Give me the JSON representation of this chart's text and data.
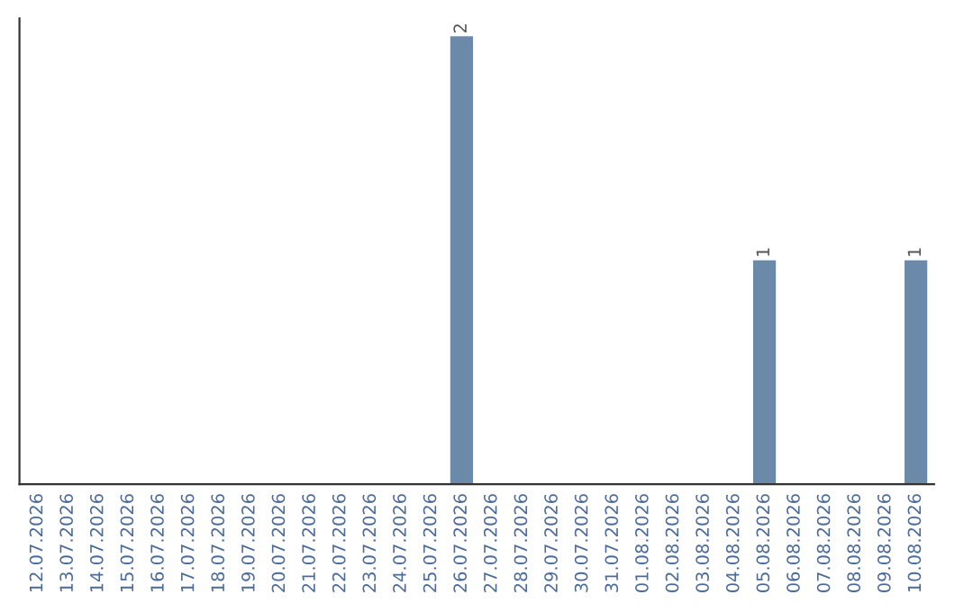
{
  "chart_data": {
    "type": "bar",
    "categories": [
      "12.07.2026",
      "13.07.2026",
      "14.07.2026",
      "15.07.2026",
      "16.07.2026",
      "17.07.2026",
      "18.07.2026",
      "19.07.2026",
      "20.07.2026",
      "21.07.2026",
      "22.07.2026",
      "23.07.2026",
      "24.07.2026",
      "25.07.2026",
      "26.07.2026",
      "27.07.2026",
      "28.07.2026",
      "29.07.2026",
      "30.07.2026",
      "31.07.2026",
      "01.08.2026",
      "02.08.2026",
      "03.08.2026",
      "04.08.2026",
      "05.08.2026",
      "06.08.2026",
      "07.08.2026",
      "08.08.2026",
      "09.08.2026",
      "10.08.2026"
    ],
    "values": [
      null,
      null,
      null,
      null,
      null,
      null,
      null,
      null,
      null,
      null,
      null,
      null,
      null,
      null,
      2,
      null,
      null,
      null,
      null,
      null,
      null,
      null,
      null,
      null,
      1,
      null,
      null,
      null,
      null,
      1
    ],
    "data_labels": true,
    "color": "#6b8aaa",
    "tick_labels": "x",
    "grid": false
  }
}
